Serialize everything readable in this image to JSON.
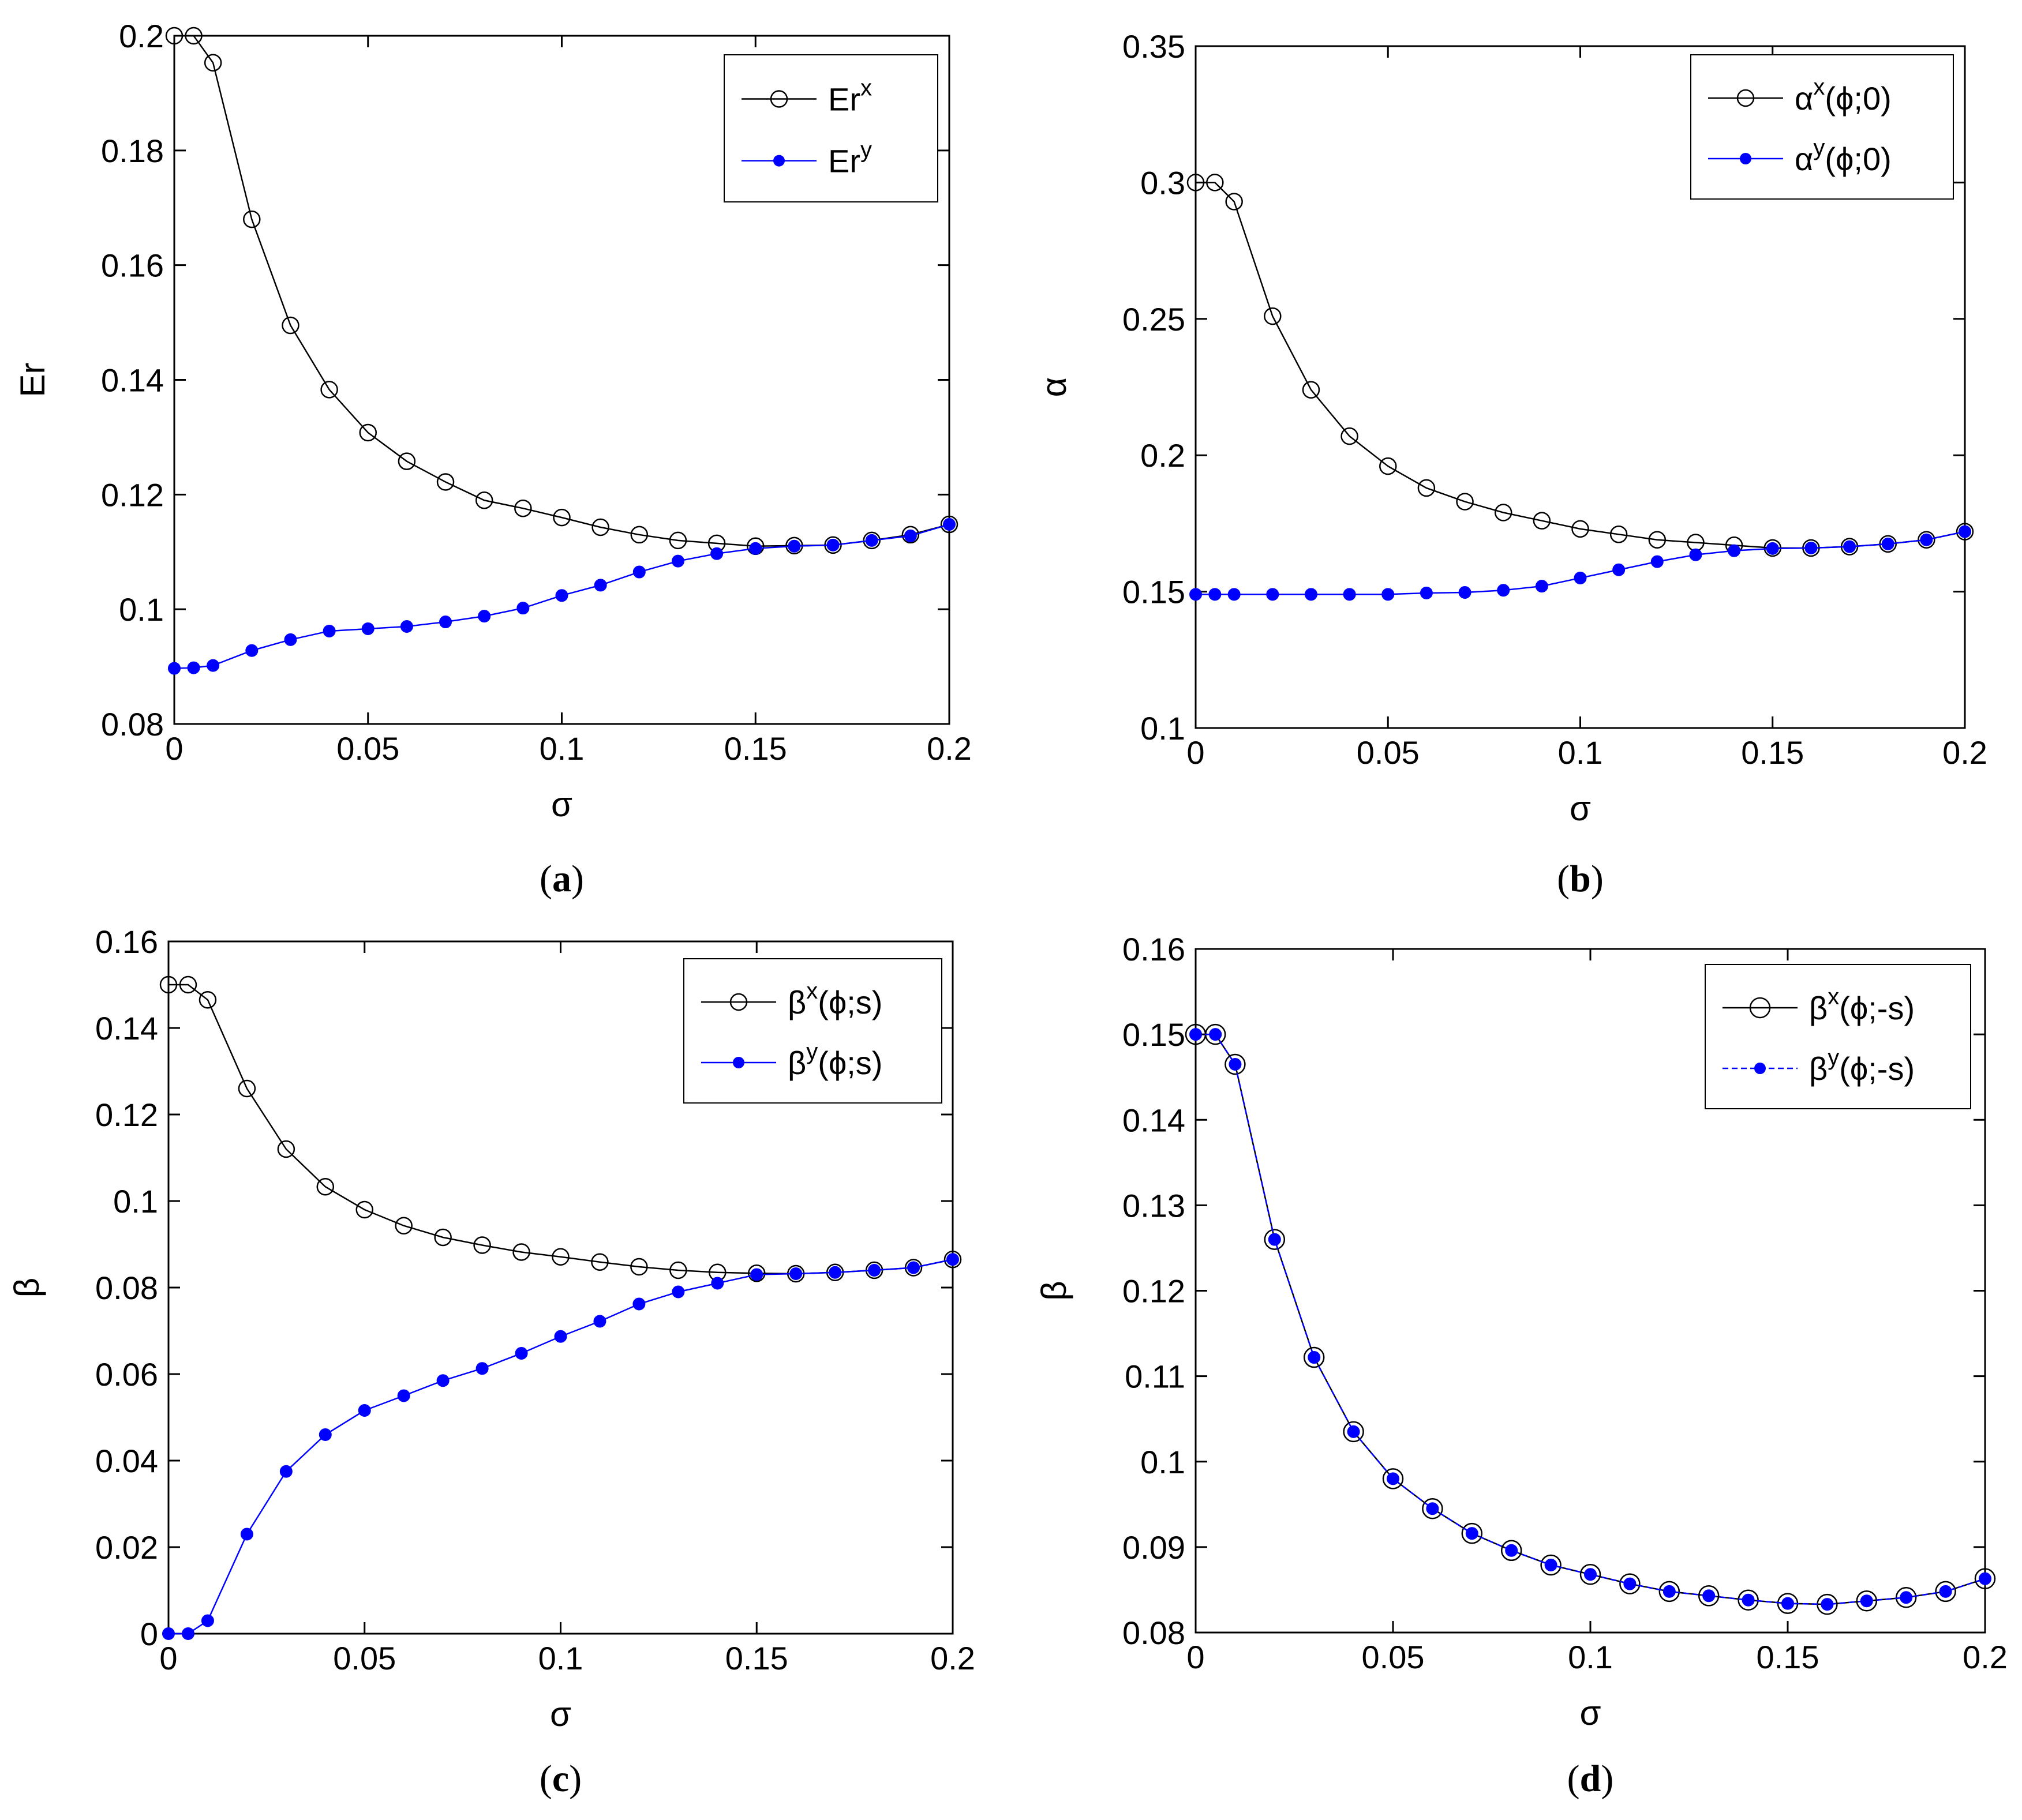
{
  "colors": {
    "series_x": "#000000",
    "series_y": "#0000ff",
    "background": "#ffffff"
  },
  "chart_data": [
    {
      "panel": "a",
      "caption_letter": "a",
      "type": "line",
      "xlabel": "σ",
      "ylabel": "Er",
      "xlim": [
        0,
        0.2
      ],
      "ylim": [
        0.08,
        0.2
      ],
      "xticks": [
        0,
        0.05,
        0.1,
        0.15,
        0.2
      ],
      "xtick_labels": [
        "0",
        "0.05",
        "0.1",
        "0.15",
        "0.2"
      ],
      "yticks": [
        0.08,
        0.1,
        0.12,
        0.14,
        0.16,
        0.18,
        0.2
      ],
      "ytick_labels": [
        "0.08",
        "0.1",
        "0.12",
        "0.14",
        "0.16",
        "0.18",
        "0.2"
      ],
      "legend_position": "top-right",
      "x": [
        0,
        0.005,
        0.01,
        0.02,
        0.03,
        0.04,
        0.05,
        0.06,
        0.07,
        0.08,
        0.09,
        0.1,
        0.11,
        0.12,
        0.13,
        0.14,
        0.15,
        0.16,
        0.17,
        0.18,
        0.19,
        0.2
      ],
      "series": [
        {
          "name": "Er",
          "sup": "x",
          "suffix": "",
          "marker": "open-circle",
          "dashed": false,
          "values": [
            0.2,
            0.2,
            0.1953,
            0.168,
            0.1495,
            0.1383,
            0.1308,
            0.1258,
            0.1222,
            0.119,
            0.1176,
            0.116,
            0.1143,
            0.113,
            0.112,
            0.1115,
            0.111,
            0.1111,
            0.1112,
            0.112,
            0.113,
            0.1148
          ]
        },
        {
          "name": "Er",
          "sup": "y",
          "suffix": "",
          "marker": "filled-dot",
          "dashed": false,
          "values": [
            0.0897,
            0.0898,
            0.0902,
            0.0928,
            0.0947,
            0.0962,
            0.0966,
            0.097,
            0.0978,
            0.0988,
            0.1002,
            0.1024,
            0.1042,
            0.1065,
            0.1084,
            0.1097,
            0.1106,
            0.111,
            0.1112,
            0.112,
            0.1128,
            0.1148
          ]
        }
      ]
    },
    {
      "panel": "b",
      "caption_letter": "b",
      "type": "line",
      "xlabel": "σ",
      "ylabel": "α",
      "xlim": [
        0,
        0.2
      ],
      "ylim": [
        0.1,
        0.35
      ],
      "xticks": [
        0,
        0.05,
        0.1,
        0.15,
        0.2
      ],
      "xtick_labels": [
        "0",
        "0.05",
        "0.1",
        "0.15",
        "0.2"
      ],
      "yticks": [
        0.1,
        0.15,
        0.2,
        0.25,
        0.3,
        0.35
      ],
      "ytick_labels": [
        "0.1",
        "0.15",
        "0.2",
        "0.25",
        "0.3",
        "0.35"
      ],
      "legend_position": "top-right",
      "x": [
        0,
        0.005,
        0.01,
        0.02,
        0.03,
        0.04,
        0.05,
        0.06,
        0.07,
        0.08,
        0.09,
        0.1,
        0.11,
        0.12,
        0.13,
        0.14,
        0.15,
        0.16,
        0.17,
        0.18,
        0.19,
        0.2
      ],
      "series": [
        {
          "name": "α",
          "sup": "x",
          "suffix": "(ϕ;0)",
          "marker": "open-circle",
          "dashed": false,
          "values": [
            0.3,
            0.3,
            0.293,
            0.251,
            0.224,
            0.207,
            0.196,
            0.188,
            0.183,
            0.179,
            0.176,
            0.173,
            0.171,
            0.169,
            0.168,
            0.167,
            0.166,
            0.166,
            0.1665,
            0.1675,
            0.169,
            0.172
          ]
        },
        {
          "name": "α",
          "sup": "y",
          "suffix": "(ϕ;0)",
          "marker": "filled-dot",
          "dashed": false,
          "values": [
            0.149,
            0.149,
            0.149,
            0.149,
            0.149,
            0.149,
            0.149,
            0.1495,
            0.1497,
            0.1505,
            0.152,
            0.155,
            0.158,
            0.161,
            0.1635,
            0.165,
            0.1658,
            0.166,
            0.1665,
            0.1675,
            0.169,
            0.172
          ]
        }
      ]
    },
    {
      "panel": "c",
      "caption_letter": "c",
      "type": "line",
      "xlabel": "σ",
      "ylabel": "β",
      "xlim": [
        0,
        0.2
      ],
      "ylim": [
        0,
        0.16
      ],
      "xticks": [
        0,
        0.05,
        0.1,
        0.15,
        0.2
      ],
      "xtick_labels": [
        "0",
        "0.05",
        "0.1",
        "0.15",
        "0.2"
      ],
      "yticks": [
        0,
        0.02,
        0.04,
        0.06,
        0.08,
        0.1,
        0.12,
        0.14,
        0.16
      ],
      "ytick_labels": [
        "0",
        "0.02",
        "0.04",
        "0.06",
        "0.08",
        "0.1",
        "0.12",
        "0.14",
        "0.16"
      ],
      "legend_position": "top-right",
      "x": [
        0,
        0.005,
        0.01,
        0.02,
        0.03,
        0.04,
        0.05,
        0.06,
        0.07,
        0.08,
        0.09,
        0.1,
        0.11,
        0.12,
        0.13,
        0.14,
        0.15,
        0.16,
        0.17,
        0.18,
        0.19,
        0.2
      ],
      "series": [
        {
          "name": "β",
          "sup": "x",
          "suffix": "(ϕ;s)",
          "marker": "open-circle",
          "dashed": false,
          "values": [
            0.15,
            0.15,
            0.1465,
            0.126,
            0.112,
            0.1033,
            0.098,
            0.0943,
            0.0916,
            0.0898,
            0.0882,
            0.0871,
            0.0859,
            0.0848,
            0.084,
            0.0835,
            0.0833,
            0.0832,
            0.0835,
            0.084,
            0.0846,
            0.0865
          ]
        },
        {
          "name": "β",
          "sup": "y",
          "suffix": "(ϕ;s)",
          "marker": "filled-dot",
          "dashed": false,
          "values": [
            0,
            0,
            0.003,
            0.023,
            0.0375,
            0.046,
            0.0516,
            0.055,
            0.0585,
            0.0613,
            0.0648,
            0.0687,
            0.0722,
            0.0762,
            0.079,
            0.081,
            0.083,
            0.0832,
            0.0835,
            0.084,
            0.0846,
            0.0865
          ]
        }
      ]
    },
    {
      "panel": "d",
      "caption_letter": "d",
      "type": "line",
      "xlabel": "σ",
      "ylabel": "β",
      "xlim": [
        0,
        0.2
      ],
      "ylim": [
        0.08,
        0.16
      ],
      "xticks": [
        0,
        0.05,
        0.1,
        0.15,
        0.2
      ],
      "xtick_labels": [
        "0",
        "0.05",
        "0.1",
        "0.15",
        "0.2"
      ],
      "yticks": [
        0.08,
        0.09,
        0.1,
        0.11,
        0.12,
        0.13,
        0.14,
        0.15,
        0.16
      ],
      "ytick_labels": [
        "0.08",
        "0.09",
        "0.1",
        "0.11",
        "0.12",
        "0.13",
        "0.14",
        "0.15",
        "0.16"
      ],
      "legend_position": "top-right",
      "x": [
        0,
        0.005,
        0.01,
        0.02,
        0.03,
        0.04,
        0.05,
        0.06,
        0.07,
        0.08,
        0.09,
        0.1,
        0.11,
        0.12,
        0.13,
        0.14,
        0.15,
        0.16,
        0.17,
        0.18,
        0.19,
        0.2
      ],
      "series": [
        {
          "name": "β",
          "sup": "x",
          "suffix": "(ϕ;-s)",
          "marker": "open-circle-large",
          "dashed": false,
          "values": [
            0.15,
            0.15,
            0.1465,
            0.126,
            0.1122,
            0.1035,
            0.098,
            0.0945,
            0.0916,
            0.0896,
            0.0879,
            0.0868,
            0.0857,
            0.0848,
            0.0843,
            0.0838,
            0.0834,
            0.0833,
            0.0837,
            0.0841,
            0.0848,
            0.0863
          ]
        },
        {
          "name": "β",
          "sup": "y",
          "suffix": "(ϕ;-s)",
          "marker": "filled-dot",
          "dashed": true,
          "values": [
            0.15,
            0.15,
            0.1465,
            0.126,
            0.1122,
            0.1035,
            0.098,
            0.0945,
            0.0916,
            0.0896,
            0.0879,
            0.0868,
            0.0857,
            0.0848,
            0.0843,
            0.0838,
            0.0834,
            0.0833,
            0.0837,
            0.0841,
            0.0848,
            0.0863
          ]
        }
      ]
    }
  ]
}
